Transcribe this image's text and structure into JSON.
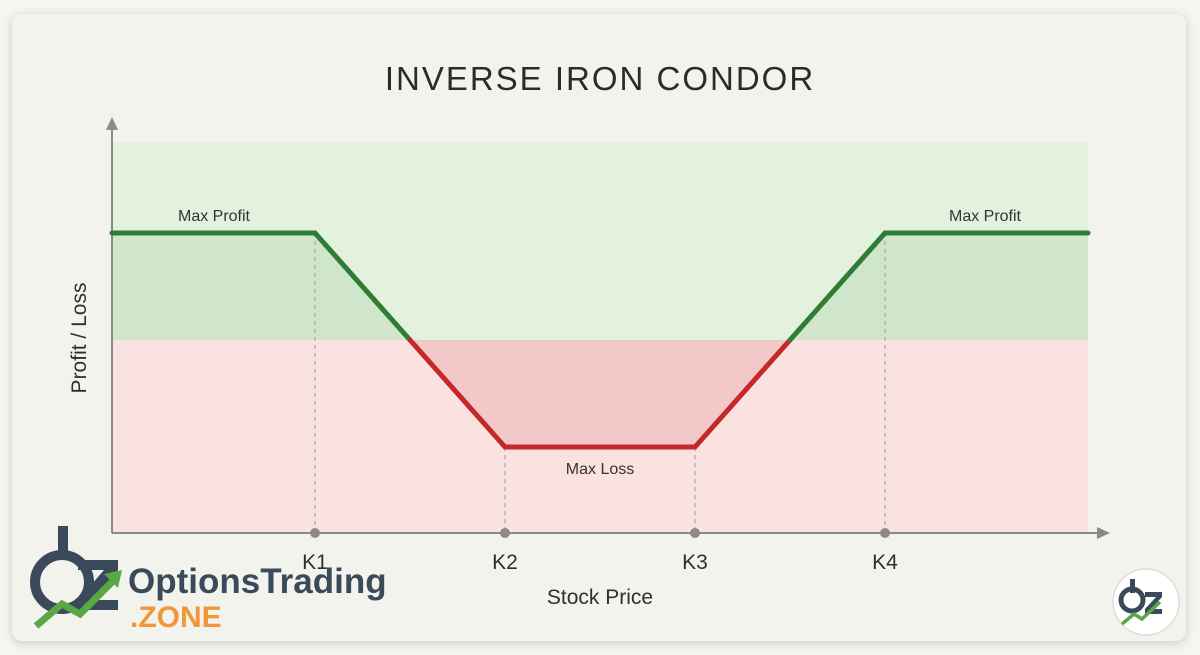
{
  "chart_data": {
    "type": "line",
    "title": "INVERSE IRON CONDOR",
    "xlabel": "Stock Price",
    "ylabel": "Profit / Loss",
    "grid": false,
    "x_ticks": [
      "K1",
      "K2",
      "K3",
      "K4"
    ],
    "series": [
      {
        "x": [
          "",
          "K1",
          "",
          "K2",
          "K3",
          "",
          "K4",
          ""
        ],
        "y": [
          1,
          1,
          0,
          -1,
          -1,
          0,
          1,
          1
        ]
      }
    ],
    "annotations": {
      "max_profit_left": "Max Profit",
      "max_profit_right": "Max Profit",
      "max_loss": "Max Loss"
    },
    "colors": {
      "profit_line": "#2e7d32",
      "loss_line": "#c62828",
      "profit_zone": "#dcefd9",
      "loss_zone": "#f8dcda"
    }
  },
  "logo": {
    "name_main": "OptionsTrading",
    "name_sub": ".ZONE"
  }
}
